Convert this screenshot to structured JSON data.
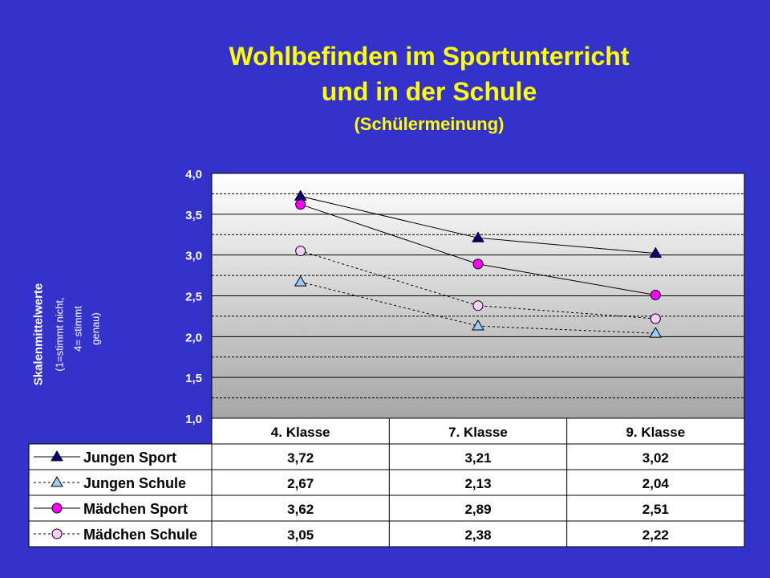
{
  "title": {
    "line1": "Wohlbefinden im Sportunterricht",
    "line2": "und in der Schule",
    "line3": "(Schülermeinung)"
  },
  "chart_data": {
    "type": "line",
    "categories": [
      "4. Klasse",
      "7. Klasse",
      "9. Klasse"
    ],
    "ylabel": "Skalenmittelwerte",
    "ylabel_note_1": "(1=stimmt nicht,",
    "ylabel_note_2": "4= stimmt",
    "ylabel_note_3": "genau)",
    "ylim": [
      1.0,
      4.0
    ],
    "y_ticks": [
      "1,0",
      "1,5",
      "2,0",
      "2,5",
      "3,0",
      "3,5",
      "4,0"
    ],
    "grid": true,
    "legend": "data-table-below",
    "series": [
      {
        "name": "Jungen Sport",
        "values": [
          3.72,
          3.21,
          3.02
        ],
        "labels": [
          "3,72",
          "3,21",
          "3,02"
        ],
        "marker": "triangle",
        "color": "#000080",
        "dash": false
      },
      {
        "name": "Jungen Schule",
        "values": [
          2.67,
          2.13,
          2.04
        ],
        "labels": [
          "2,67",
          "2,13",
          "2,04"
        ],
        "marker": "triangle",
        "color": "#99CCFF",
        "dash": true
      },
      {
        "name": "Mädchen Sport",
        "values": [
          3.62,
          2.89,
          2.51
        ],
        "labels": [
          "3,62",
          "2,89",
          "2,51"
        ],
        "marker": "circle",
        "color": "#FF00FF",
        "dash": false
      },
      {
        "name": "Mädchen Schule",
        "values": [
          3.05,
          2.38,
          2.22
        ],
        "labels": [
          "3,05",
          "2,38",
          "2,22"
        ],
        "marker": "circle",
        "color": "#FFCCFF",
        "dash": true
      }
    ]
  }
}
